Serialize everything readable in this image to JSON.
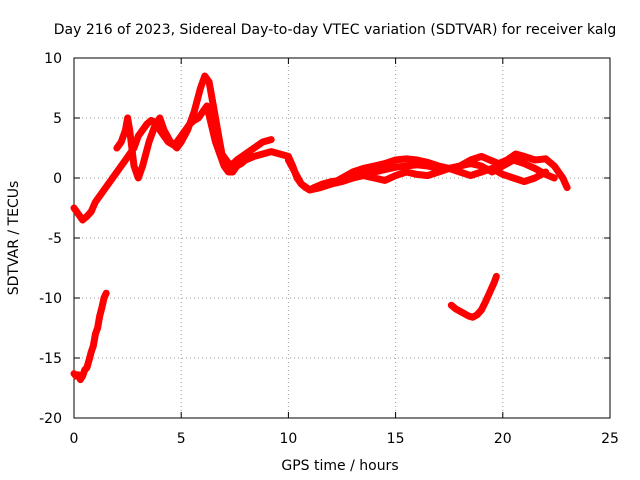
{
  "chart_data": {
    "type": "scatter",
    "title": "Day 216 of 2023, Sidereal Day-to-day VTEC variation (SDTVAR) for receiver kalg",
    "xlabel": "GPS time / hours",
    "ylabel": "SDTVAR / TECUs",
    "xlim": [
      0,
      25
    ],
    "ylim": [
      -20,
      10
    ],
    "xticks": [
      0,
      5,
      10,
      15,
      20,
      25
    ],
    "yticks": [
      -20,
      -15,
      -10,
      -5,
      0,
      5,
      10
    ],
    "xtick_labels": [
      "0",
      "5",
      "10",
      "15",
      "20",
      "25"
    ],
    "ytick_labels": [
      "-20",
      "-15",
      "-10",
      "-5",
      "0",
      "5",
      "10"
    ],
    "grid": true,
    "marker": "plus",
    "color": "#ff0000",
    "series": [
      {
        "name": "track-1",
        "x": [
          0.0,
          0.2,
          0.4,
          0.6,
          0.8,
          1.0,
          1.2,
          1.4,
          1.6,
          1.8,
          2.0,
          2.2,
          2.4,
          2.6,
          2.8,
          3.0,
          3.2,
          3.4,
          3.6,
          3.8,
          4.0,
          4.2,
          4.4,
          4.6,
          4.8,
          5.0,
          5.2,
          5.4,
          5.6,
          5.8,
          6.0,
          6.2,
          6.4,
          6.6,
          6.8,
          7.0,
          7.2,
          7.4,
          7.6,
          7.8,
          8.0,
          8.4,
          8.8,
          9.2,
          9.6,
          10.0,
          10.2,
          10.4,
          10.6,
          10.8,
          11.0,
          11.2,
          11.6,
          12.0,
          12.5,
          13.0,
          13.5,
          14.0,
          14.5,
          15.0,
          15.5,
          16.0,
          16.5,
          17.0,
          17.5,
          18.0,
          18.5,
          19.0,
          19.5,
          20.0,
          20.5,
          21.0,
          21.5,
          22.0,
          22.4
        ],
        "y": [
          -2.5,
          -3.0,
          -3.5,
          -3.2,
          -2.8,
          -2.0,
          -1.5,
          -1.0,
          -0.5,
          0.0,
          0.5,
          1.0,
          1.5,
          2.0,
          2.5,
          3.5,
          4.0,
          4.5,
          4.8,
          4.6,
          4.0,
          3.5,
          3.0,
          2.8,
          3.0,
          3.5,
          4.0,
          4.5,
          4.8,
          5.0,
          5.5,
          6.0,
          4.5,
          3.0,
          2.0,
          1.0,
          0.5,
          0.5,
          1.0,
          1.2,
          1.5,
          1.8,
          2.0,
          2.2,
          2.0,
          1.8,
          1.0,
          0.0,
          -0.5,
          -0.8,
          -1.0,
          -0.8,
          -0.5,
          -0.3,
          -0.2,
          0.0,
          0.3,
          0.5,
          0.7,
          0.9,
          1.0,
          1.1,
          1.0,
          0.8,
          0.8,
          1.0,
          1.2,
          1.0,
          0.5,
          1.0,
          1.5,
          1.2,
          0.8,
          0.3,
          0.0
        ]
      },
      {
        "name": "track-2",
        "x": [
          2.0,
          2.2,
          2.4,
          2.5,
          2.6,
          2.8,
          3.0,
          3.2,
          3.5,
          3.8,
          4.0,
          4.2,
          4.5,
          4.8,
          5.0,
          5.3,
          5.6,
          5.9,
          6.1,
          6.3,
          6.5,
          6.7,
          6.9,
          7.1,
          7.3,
          7.6,
          8.0,
          8.4,
          8.8,
          9.2
        ],
        "y": [
          2.5,
          3.0,
          4.0,
          5.0,
          4.0,
          1.0,
          0.0,
          1.0,
          3.0,
          4.5,
          5.0,
          4.0,
          3.0,
          2.5,
          3.0,
          4.0,
          5.5,
          7.5,
          8.5,
          8.0,
          6.0,
          4.0,
          2.0,
          1.5,
          1.0,
          1.5,
          2.0,
          2.5,
          3.0,
          3.2
        ]
      },
      {
        "name": "track-3",
        "x": [
          10.0,
          10.3,
          10.6,
          11.0,
          11.5,
          12.0,
          12.5,
          13.0,
          13.5,
          14.0,
          14.5,
          15.0,
          15.5,
          16.0,
          16.5,
          17.0,
          17.5,
          18.0,
          18.5,
          19.0,
          19.4,
          19.8,
          20.2,
          20.6,
          21.0,
          21.5,
          22.0,
          22.4,
          22.8,
          23.0
        ],
        "y": [
          1.5,
          0.5,
          -0.5,
          -1.0,
          -0.8,
          -0.5,
          0.0,
          0.5,
          0.8,
          1.0,
          1.2,
          1.5,
          1.6,
          1.5,
          1.3,
          1.0,
          0.8,
          1.0,
          1.5,
          1.8,
          1.5,
          1.2,
          1.5,
          2.0,
          1.8,
          1.5,
          1.6,
          1.0,
          0.0,
          -0.8
        ]
      },
      {
        "name": "track-4",
        "x": [
          12.0,
          12.5,
          13.0,
          13.5,
          14.0,
          14.5,
          15.0,
          15.5,
          16.0,
          16.5,
          17.0,
          17.5,
          18.0,
          18.5,
          19.0,
          19.5,
          20.0,
          20.5,
          21.0,
          21.5,
          22.0
        ],
        "y": [
          -0.5,
          -0.3,
          0.0,
          0.2,
          0.0,
          -0.2,
          0.2,
          0.5,
          0.3,
          0.2,
          0.5,
          0.8,
          0.5,
          0.2,
          0.5,
          0.8,
          0.3,
          0.0,
          -0.3,
          0.0,
          0.5
        ]
      },
      {
        "name": "track-5",
        "x": [
          0.0,
          0.1,
          0.2,
          0.3,
          0.4,
          0.5,
          0.6,
          0.7,
          0.8,
          0.9,
          1.0,
          1.1,
          1.2,
          1.3,
          1.4,
          1.5
        ],
        "y": [
          -16.3,
          -16.5,
          -16.4,
          -16.8,
          -16.5,
          -16.0,
          -15.8,
          -15.2,
          -14.5,
          -14.0,
          -13.0,
          -12.5,
          -11.5,
          -10.8,
          -10.0,
          -9.6
        ]
      },
      {
        "name": "track-6",
        "x": [
          17.6,
          17.8,
          18.0,
          18.2,
          18.4,
          18.6,
          18.8,
          19.0,
          19.2,
          19.4,
          19.6,
          19.7
        ],
        "y": [
          -10.6,
          -10.9,
          -11.1,
          -11.3,
          -11.5,
          -11.6,
          -11.4,
          -11.0,
          -10.3,
          -9.5,
          -8.7,
          -8.2
        ]
      }
    ]
  }
}
